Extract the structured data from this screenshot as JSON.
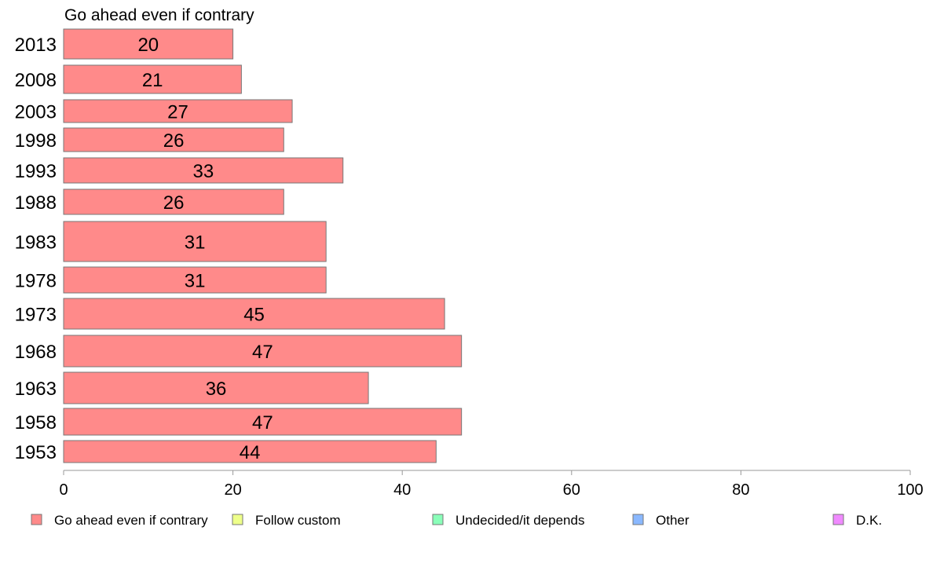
{
  "chart_data": {
    "type": "bar",
    "orientation": "horizontal",
    "panel_title": "Go ahead even if contrary",
    "categories": [
      "2013",
      "2008",
      "2003",
      "1998",
      "1993",
      "1988",
      "1983",
      "1978",
      "1973",
      "1968",
      "1963",
      "1958",
      "1953"
    ],
    "series": [
      {
        "name": "Go ahead even if contrary",
        "values": [
          20,
          21,
          27,
          26,
          33,
          26,
          31,
          31,
          45,
          47,
          36,
          47,
          44
        ],
        "color": "#ff8a8a"
      }
    ],
    "xlim": [
      0,
      100
    ],
    "xticks": [
      "0",
      "20",
      "40",
      "60",
      "80",
      "100"
    ],
    "grid": false,
    "legend_position": "bottom",
    "legend": [
      {
        "label": "Go ahead even if contrary",
        "color": "#ff8a8a"
      },
      {
        "label": "Follow custom",
        "color": "#eeff8a"
      },
      {
        "label": "Undecided/it depends",
        "color": "#8affb9"
      },
      {
        "label": "Other",
        "color": "#8ab8ff"
      },
      {
        "label": "D.K.",
        "color": "#f08aff"
      }
    ]
  }
}
